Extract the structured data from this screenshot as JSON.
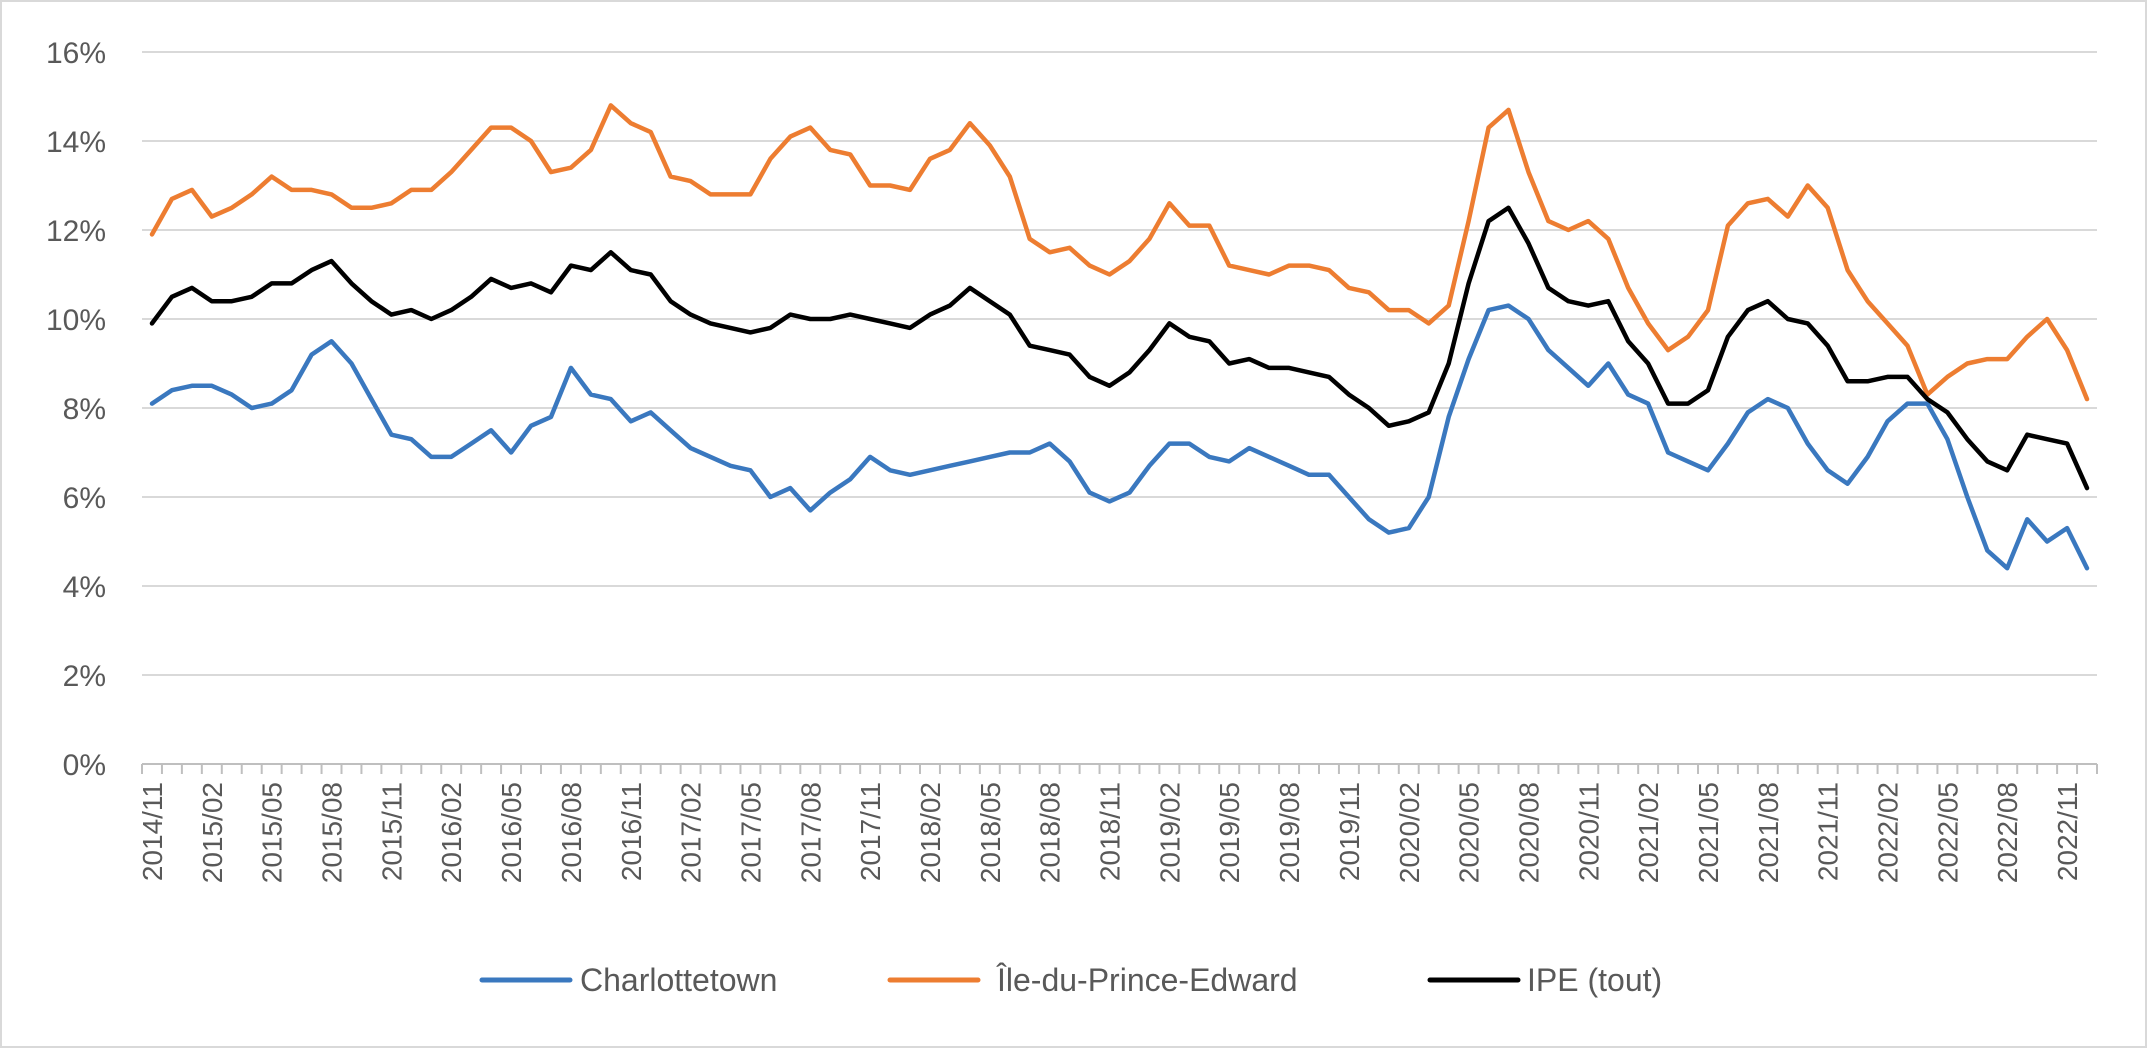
{
  "chart_data": {
    "type": "line",
    "title": "",
    "xlabel": "",
    "ylabel": "",
    "ylim": [
      0,
      16
    ],
    "y_ticks": [
      "0%",
      "2%",
      "4%",
      "6%",
      "8%",
      "10%",
      "12%",
      "14%",
      "16%"
    ],
    "x_tick_labels": [
      "2014/11",
      "2015/02",
      "2015/05",
      "2015/08",
      "2015/11",
      "2016/02",
      "2016/05",
      "2016/08",
      "2016/11",
      "2017/02",
      "2017/05",
      "2017/08",
      "2017/11",
      "2018/02",
      "2018/05",
      "2018/08",
      "2018/11",
      "2019/02",
      "2019/05",
      "2019/08",
      "2019/11",
      "2020/02",
      "2020/05",
      "2020/08",
      "2020/11",
      "2021/02",
      "2021/05",
      "2021/08",
      "2021/11",
      "2022/02",
      "2022/05",
      "2022/08",
      "2022/11"
    ],
    "x_start": "2014/11",
    "x_end": "2022/12",
    "grid": true,
    "legend_position": "bottom",
    "series": [
      {
        "name": "Charlottetown",
        "color": "#3a78bf",
        "values": [
          8.1,
          8.4,
          8.5,
          8.5,
          8.3,
          8.0,
          8.1,
          8.4,
          9.2,
          9.5,
          9.0,
          8.2,
          7.4,
          7.3,
          6.9,
          6.9,
          7.2,
          7.5,
          7.0,
          7.6,
          7.8,
          8.9,
          8.3,
          8.2,
          7.7,
          7.9,
          7.5,
          7.1,
          6.9,
          6.7,
          6.6,
          6.0,
          6.2,
          5.7,
          6.1,
          6.4,
          6.9,
          6.6,
          6.5,
          6.6,
          6.7,
          6.8,
          6.9,
          7.0,
          7.0,
          7.2,
          6.8,
          6.1,
          5.9,
          6.1,
          6.7,
          7.2,
          7.2,
          6.9,
          6.8,
          7.1,
          6.9,
          6.7,
          6.5,
          6.5,
          6.0,
          5.5,
          5.2,
          5.3,
          6.0,
          7.8,
          9.1,
          10.2,
          10.3,
          10.0,
          9.3,
          8.9,
          8.5,
          9.0,
          8.3,
          8.1,
          7.0,
          6.8,
          6.6,
          7.2,
          7.9,
          8.2,
          8.0,
          7.2,
          6.6,
          6.3,
          6.9,
          7.7,
          8.1,
          8.1,
          7.3,
          6.0,
          4.8,
          4.4,
          5.5,
          5.0,
          5.3,
          4.4
        ]
      },
      {
        "name": "Île-du-Prince-Edward",
        "color": "#ed7d31",
        "values": [
          11.9,
          12.7,
          12.9,
          12.3,
          12.5,
          12.8,
          13.2,
          12.9,
          12.9,
          12.8,
          12.5,
          12.5,
          12.6,
          12.9,
          12.9,
          13.3,
          13.8,
          14.3,
          14.3,
          14.0,
          13.3,
          13.4,
          13.8,
          14.8,
          14.4,
          14.2,
          13.2,
          13.1,
          12.8,
          12.8,
          12.8,
          13.6,
          14.1,
          14.3,
          13.8,
          13.7,
          13.0,
          13.0,
          12.9,
          13.6,
          13.8,
          14.4,
          13.9,
          13.2,
          11.8,
          11.5,
          11.6,
          11.2,
          11.0,
          11.3,
          11.8,
          12.6,
          12.1,
          12.1,
          11.2,
          11.1,
          11.0,
          11.2,
          11.2,
          11.1,
          10.7,
          10.6,
          10.2,
          10.2,
          9.9,
          10.3,
          12.2,
          14.3,
          14.7,
          13.3,
          12.2,
          12.0,
          12.2,
          11.8,
          10.7,
          9.9,
          9.3,
          9.6,
          10.2,
          12.1,
          12.6,
          12.7,
          12.3,
          13.0,
          12.5,
          11.1,
          10.4,
          9.9,
          9.4,
          8.3,
          8.7,
          9.0,
          9.1,
          9.1,
          9.6,
          10.0,
          9.3,
          8.2
        ]
      },
      {
        "name": "IPE (tout)",
        "color": "#000000",
        "values": [
          9.9,
          10.5,
          10.7,
          10.4,
          10.4,
          10.5,
          10.8,
          10.8,
          11.1,
          11.3,
          10.8,
          10.4,
          10.1,
          10.2,
          10.0,
          10.2,
          10.5,
          10.9,
          10.7,
          10.8,
          10.6,
          11.2,
          11.1,
          11.5,
          11.1,
          11.0,
          10.4,
          10.1,
          9.9,
          9.8,
          9.7,
          9.8,
          10.1,
          10.0,
          10.0,
          10.1,
          10.0,
          9.9,
          9.8,
          10.1,
          10.3,
          10.7,
          10.4,
          10.1,
          9.4,
          9.3,
          9.2,
          8.7,
          8.5,
          8.8,
          9.3,
          9.9,
          9.6,
          9.5,
          9.0,
          9.1,
          8.9,
          8.9,
          8.8,
          8.7,
          8.3,
          8.0,
          7.6,
          7.7,
          7.9,
          9.0,
          10.8,
          12.2,
          12.5,
          11.7,
          10.7,
          10.4,
          10.3,
          10.4,
          9.5,
          9.0,
          8.1,
          8.1,
          8.4,
          9.6,
          10.2,
          10.4,
          10.0,
          9.9,
          9.4,
          8.6,
          8.6,
          8.7,
          8.7,
          8.2,
          7.9,
          7.3,
          6.8,
          6.6,
          7.4,
          7.3,
          7.2,
          6.2
        ]
      }
    ]
  }
}
